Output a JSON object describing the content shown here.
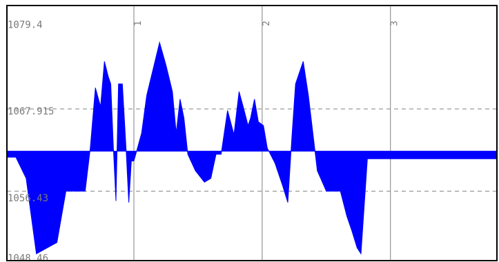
{
  "chart_data": {
    "type": "area",
    "baseline": 1062.6,
    "y_tick_labels": [
      {
        "value": 1079.4,
        "label": "1079.4"
      },
      {
        "value": 1067.915,
        "label": "1067.915"
      },
      {
        "value": 1056.43,
        "label": "1056.43"
      },
      {
        "value": 1048.46,
        "label": "1048.46"
      }
    ],
    "ylim": [
      1048.1,
      1081.9
    ],
    "xlim": [
      -0.99,
      2.83
    ],
    "x_tick_labels": [
      {
        "value": 0,
        "label": "1"
      },
      {
        "value": 1,
        "label": "2"
      },
      {
        "value": 2,
        "label": "3"
      }
    ],
    "dashed_gridlines": [
      1068.2,
      1057.3
    ],
    "grid": true,
    "fill_color": "#0000ff",
    "series": [
      {
        "x": [
          -0.99,
          -0.92,
          -0.84,
          -0.76,
          -0.6,
          -0.53,
          -0.45,
          -0.38,
          -0.34,
          -0.3,
          -0.26,
          -0.23,
          -0.2,
          -0.18,
          -0.16,
          -0.14,
          -0.12,
          -0.09,
          -0.06,
          -0.04,
          -0.02,
          0.0,
          0.06,
          0.1,
          0.15,
          0.2,
          0.25,
          0.3,
          0.33,
          0.36,
          0.39,
          0.42,
          0.48,
          0.55,
          0.6,
          0.64,
          0.68,
          0.73,
          0.78,
          0.82,
          0.86,
          0.89,
          0.91,
          0.94,
          0.97,
          1.01,
          1.04,
          1.1,
          1.16,
          1.2,
          1.23,
          1.26,
          1.28,
          1.32,
          1.36,
          1.43,
          1.5,
          1.53,
          1.57,
          1.61,
          1.66,
          1.7,
          1.74,
          1.77,
          1.82,
          1.86,
          1.9,
          1.94,
          1.98,
          2.02,
          2.1,
          2.18,
          2.26,
          2.34,
          2.42,
          2.5,
          2.58,
          2.66,
          2.74,
          2.8,
          2.83
        ],
        "y": [
          1061.8,
          1061.8,
          1059.0,
          1049.0,
          1050.5,
          1057.3,
          1057.3,
          1057.3,
          1063.0,
          1071.0,
          1068.5,
          1074.5,
          1072.5,
          1071.5,
          1063.0,
          1056.0,
          1071.5,
          1071.5,
          1062.5,
          1055.8,
          1061.3,
          1061.3,
          1065.0,
          1070.0,
          1073.5,
          1077.0,
          1074.0,
          1070.5,
          1065.0,
          1069.5,
          1067.0,
          1062.2,
          1060.0,
          1058.5,
          1059.0,
          1062.2,
          1062.2,
          1068.0,
          1064.8,
          1070.5,
          1068.0,
          1066.0,
          1067.0,
          1069.5,
          1066.5,
          1066.0,
          1063.0,
          1061.0,
          1058.0,
          1055.8,
          1064.0,
          1071.5,
          1072.5,
          1074.5,
          1070.0,
          1060.0,
          1057.3,
          1057.3,
          1057.3,
          1057.3,
          1054.0,
          1052.0,
          1049.8,
          1049.0,
          1061.6,
          1061.6,
          1061.6,
          1061.6,
          1061.6,
          1061.6,
          1061.6,
          1061.6,
          1061.6,
          1061.6,
          1061.6,
          1061.6,
          1061.6,
          1061.6,
          1061.6,
          1061.6,
          1061.6
        ]
      }
    ]
  }
}
